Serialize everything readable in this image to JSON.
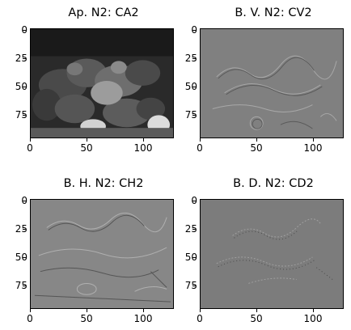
{
  "panels": [
    {
      "title": "Ap. N2: CA2",
      "image_type": "approximation"
    },
    {
      "title": "B. V. N2: CV2",
      "image_type": "vertical-detail"
    },
    {
      "title": "B. H. N2: CH2",
      "image_type": "horizontal-detail"
    },
    {
      "title": "B. D. N2: CD2",
      "image_type": "diagonal-detail"
    }
  ],
  "x_ticks": [
    "0",
    "50",
    "100"
  ],
  "y_ticks": [
    "0",
    "25",
    "50",
    "75"
  ],
  "colormap": "gray"
}
